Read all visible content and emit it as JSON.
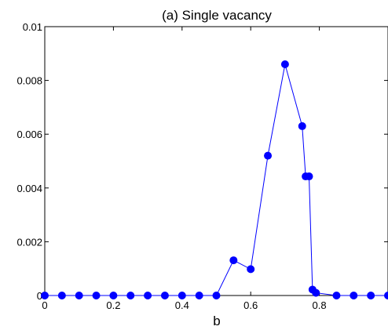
{
  "chart_data": {
    "type": "line",
    "title": "(a) Single vacancy",
    "xlabel": "b",
    "ylabel": "",
    "xlim": [
      0,
      1
    ],
    "ylim": [
      0,
      0.01
    ],
    "x_ticks": [
      0,
      0.2,
      0.4,
      0.6,
      0.8
    ],
    "x_tick_labels": [
      "0",
      "0.2",
      "0.4",
      "0.6",
      "0.8"
    ],
    "y_ticks": [
      0,
      0.002,
      0.004,
      0.006,
      0.008,
      0.01
    ],
    "y_tick_labels": [
      "0",
      "0.002",
      "0.004",
      "0.006",
      "0.008",
      "0.01"
    ],
    "grid": false,
    "colors": {
      "series": "#0000ff",
      "axes": "#000000"
    },
    "series": [
      {
        "x": [
          0,
          0.05,
          0.1,
          0.15,
          0.2,
          0.25,
          0.3,
          0.35,
          0.4,
          0.45,
          0.5,
          0.55,
          0.6,
          0.65,
          0.7,
          0.75,
          0.76,
          0.77,
          0.78,
          0.79,
          0.85,
          0.9,
          0.95,
          1.0
        ],
        "y": [
          0,
          0,
          0,
          0,
          0,
          0,
          0,
          0,
          0,
          0,
          0,
          0.00131,
          0.00098,
          0.0052,
          0.0086,
          0.0063,
          0.00443,
          0.00443,
          0.00022,
          0.0001,
          0,
          0,
          0,
          0
        ]
      }
    ]
  }
}
